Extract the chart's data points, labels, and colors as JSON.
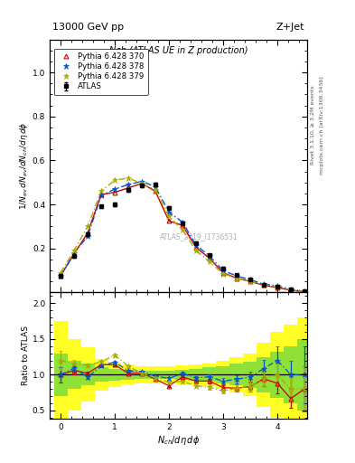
{
  "title_top": "13000 GeV pp",
  "title_right": "Z+Jet",
  "plot_title": "Nch (ATLAS UE in Z production)",
  "watermark": "ATLAS_2019_I1736531",
  "right_label": "mcplots.cern.ch [arXiv:1306.3436]",
  "right_label2": "Rivet 3.1.10, ≥ 3.2M events",
  "ylabel_main": "1/N_{ev} dN_{ev}/dN_{ch}/dη dϕ",
  "ylabel_ratio": "Ratio to ATLAS",
  "xlabel": "N_{ch}/dη dϕ",
  "ylim_main": [
    0,
    1.15
  ],
  "ylim_ratio": [
    0.38,
    2.15
  ],
  "xlim": [
    -0.2,
    4.55
  ],
  "atlas_x": [
    0.0,
    0.25,
    0.5,
    0.75,
    1.0,
    1.25,
    1.5,
    1.75,
    2.0,
    2.25,
    2.5,
    2.75,
    3.0,
    3.25,
    3.5,
    3.75,
    4.0,
    4.25,
    4.5
  ],
  "atlas_y": [
    0.075,
    0.165,
    0.265,
    0.39,
    0.4,
    0.465,
    0.485,
    0.49,
    0.385,
    0.315,
    0.225,
    0.17,
    0.11,
    0.08,
    0.06,
    0.035,
    0.025,
    0.015,
    0.005
  ],
  "atlas_yerr": [
    0.008,
    0.008,
    0.007,
    0.007,
    0.007,
    0.007,
    0.007,
    0.007,
    0.007,
    0.007,
    0.006,
    0.006,
    0.005,
    0.005,
    0.005,
    0.004,
    0.004,
    0.003,
    0.002
  ],
  "p370_x": [
    0.0,
    0.25,
    0.5,
    0.75,
    1.0,
    1.25,
    1.5,
    1.75,
    2.0,
    2.25,
    2.5,
    2.75,
    3.0,
    3.25,
    3.5,
    3.75,
    4.0,
    4.25,
    4.5
  ],
  "p370_y": [
    0.075,
    0.175,
    0.27,
    0.445,
    0.455,
    0.475,
    0.495,
    0.46,
    0.325,
    0.305,
    0.205,
    0.155,
    0.09,
    0.065,
    0.05,
    0.033,
    0.022,
    0.01,
    0.004
  ],
  "p378_x": [
    0.0,
    0.25,
    0.5,
    0.75,
    1.0,
    1.25,
    1.5,
    1.75,
    2.0,
    2.25,
    2.5,
    2.75,
    3.0,
    3.25,
    3.5,
    3.75,
    4.0,
    4.25,
    4.5
  ],
  "p378_y": [
    0.075,
    0.18,
    0.255,
    0.44,
    0.47,
    0.49,
    0.505,
    0.48,
    0.365,
    0.32,
    0.215,
    0.165,
    0.1,
    0.075,
    0.058,
    0.038,
    0.03,
    0.015,
    0.005
  ],
  "p379_x": [
    0.0,
    0.25,
    0.5,
    0.75,
    1.0,
    1.25,
    1.5,
    1.75,
    2.0,
    2.25,
    2.5,
    2.75,
    3.0,
    3.25,
    3.5,
    3.75,
    4.0,
    4.25,
    4.5
  ],
  "p379_y": [
    0.09,
    0.19,
    0.3,
    0.46,
    0.51,
    0.52,
    0.495,
    0.465,
    0.345,
    0.285,
    0.19,
    0.14,
    0.085,
    0.065,
    0.05,
    0.033,
    0.025,
    0.012,
    0.004
  ],
  "color_atlas": "#000000",
  "color_370": "#cc0000",
  "color_378": "#0055cc",
  "color_379": "#aaaa00",
  "xticks": [
    0,
    1,
    2,
    3,
    4
  ],
  "yticks_main": [
    0.2,
    0.4,
    0.6,
    0.8,
    1.0
  ],
  "yticks_ratio": [
    0.5,
    1.0,
    1.5,
    2.0
  ],
  "band_yellow": [
    [
      0.0,
      0.75
    ],
    [
      0.25,
      0.5
    ],
    [
      0.5,
      0.38
    ],
    [
      0.75,
      0.22
    ],
    [
      1.0,
      0.17
    ],
    [
      1.25,
      0.14
    ],
    [
      1.5,
      0.12
    ],
    [
      1.75,
      0.12
    ],
    [
      2.0,
      0.12
    ],
    [
      2.25,
      0.13
    ],
    [
      2.5,
      0.14
    ],
    [
      2.75,
      0.16
    ],
    [
      3.0,
      0.2
    ],
    [
      3.25,
      0.25
    ],
    [
      3.5,
      0.3
    ],
    [
      3.75,
      0.45
    ],
    [
      4.0,
      0.6
    ],
    [
      4.25,
      0.7
    ],
    [
      4.5,
      0.8
    ]
  ],
  "band_green": [
    [
      0.0,
      0.3
    ],
    [
      0.25,
      0.2
    ],
    [
      0.5,
      0.15
    ],
    [
      0.75,
      0.1
    ],
    [
      1.0,
      0.08
    ],
    [
      1.25,
      0.07
    ],
    [
      1.5,
      0.06
    ],
    [
      1.75,
      0.06
    ],
    [
      2.0,
      0.06
    ],
    [
      2.25,
      0.07
    ],
    [
      2.5,
      0.08
    ],
    [
      2.75,
      0.1
    ],
    [
      3.0,
      0.12
    ],
    [
      3.25,
      0.15
    ],
    [
      3.5,
      0.18
    ],
    [
      3.75,
      0.25
    ],
    [
      4.0,
      0.32
    ],
    [
      4.25,
      0.4
    ],
    [
      4.5,
      0.5
    ]
  ]
}
